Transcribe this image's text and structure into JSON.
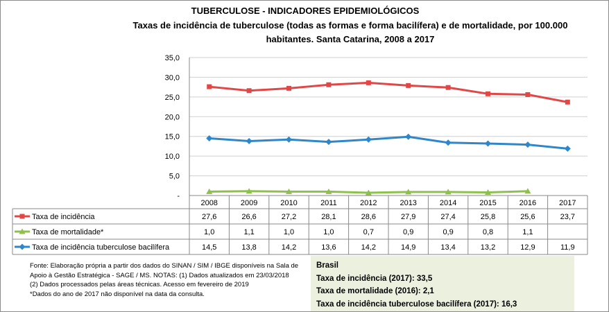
{
  "title": "TUBERCULOSE - INDICADORES EPIDEMIOLÓGICOS",
  "subtitle_line1": "Taxas de incidência de tuberculose (todas as formas e forma bacilífera) e de mortalidade,  por 100.000",
  "subtitle_line2": "habitantes. Santa Catarina, 2008 a 2017",
  "chart_data": {
    "type": "line",
    "categories": [
      "2008",
      "2009",
      "2010",
      "2011",
      "2012",
      "2013",
      "2014",
      "2015",
      "2016",
      "2017"
    ],
    "ylim": [
      0,
      35
    ],
    "yticks": [
      "-",
      "5,0",
      "10,0",
      "15,0",
      "20,0",
      "25,0",
      "30,0",
      "35,0"
    ],
    "grid": true,
    "legend": "data-table",
    "series": [
      {
        "name": "Taxa de incidência",
        "color": "#e04848",
        "marker": "square",
        "values": [
          27.6,
          26.6,
          27.2,
          28.1,
          28.6,
          27.9,
          27.4,
          25.8,
          25.6,
          23.7
        ],
        "labels": [
          "27,6",
          "26,6",
          "27,2",
          "28,1",
          "28,6",
          "27,9",
          "27,4",
          "25,8",
          "25,6",
          "23,7"
        ]
      },
      {
        "name": "Taxa de mortalidade*",
        "color": "#8fc04f",
        "marker": "triangle",
        "values": [
          1.0,
          1.1,
          1.0,
          1.0,
          0.7,
          0.9,
          0.9,
          0.8,
          1.1,
          null
        ],
        "labels": [
          "1,0",
          "1,1",
          "1,0",
          "1,0",
          "0,7",
          "0,9",
          "0,9",
          "0,8",
          "1,1",
          ""
        ]
      },
      {
        "name": "Taxa de incidência tuberculose bacilífera",
        "color": "#2f86c8",
        "marker": "diamond",
        "values": [
          14.5,
          13.8,
          14.2,
          13.6,
          14.2,
          14.9,
          13.4,
          13.2,
          12.9,
          11.9
        ],
        "labels": [
          "14,5",
          "13,8",
          "14,2",
          "13,6",
          "14,2",
          "14,9",
          "13,4",
          "13,2",
          "12,9",
          "11,9"
        ]
      }
    ]
  },
  "notes": [
    "Fonte: Elaboração própria a partir dos dados do SINAN / SIM / IBGE disponíveis na Sala de Apoio à Gestão Estratégica - SAGE / MS. NOTAS: (1) Dados atualizados em 23/03/2018",
    "(2) Dados processados pelas áreas técnicas. Acesso em fevereiro de 2019",
    "*Dados do ano de 2017 não disponível na data da consulta."
  ],
  "brasil": {
    "title": "Brasil",
    "lines": [
      "Taxa de incidência  (2017): 33,5",
      "Taxa de mortalidade (2016): 2,1",
      "Taxa de incidência  tuberculose bacilífera  (2017): 16,3"
    ]
  }
}
